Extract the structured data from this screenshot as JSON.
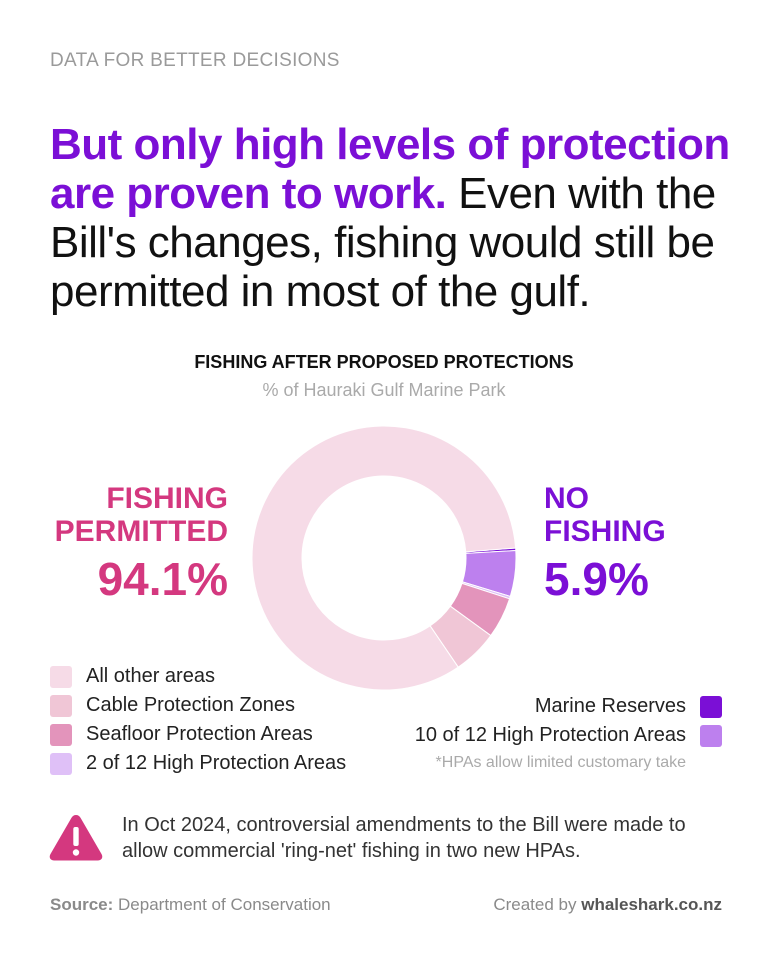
{
  "kicker": "DATA FOR BETTER DECISIONS",
  "headline": {
    "highlight": "But only high levels of protection are proven to work.",
    "rest": " Even with the Bill's changes, fishing would still be permitted in most of the gulf."
  },
  "colors": {
    "brand_purple": "#7b0fd6",
    "brand_pink": "#d4387f",
    "all_other": "#f6dbe7",
    "cable": "#f0c6d6",
    "seafloor": "#e394bb",
    "hpa2": "#dfc0f7",
    "marine_reserves": "#7b0fd6",
    "hpa10": "#bd80ee",
    "alert": "#d4387f"
  },
  "chart_data": {
    "type": "pie",
    "variant": "donut",
    "title": "FISHING AFTER PROPOSED PROTECTIONS",
    "subtitle": "% of Hauraki Gulf Marine Park",
    "categories": [
      "Marine Reserves",
      "10 of 12 High Protection Areas",
      "2 of 12 High Protection Areas",
      "Seafloor Protection Areas",
      "Cable Protection Zones",
      "All other areas"
    ],
    "values": [
      0.3,
      5.6,
      0.3,
      5.0,
      5.5,
      83.3
    ],
    "groups": {
      "fishing_permitted": {
        "label_line1": "FISHING",
        "label_line2": "PERMITTED",
        "value": "94.1%"
      },
      "no_fishing": {
        "label_line1": "NO",
        "label_line2": "FISHING",
        "value": "5.9%"
      }
    }
  },
  "legend": {
    "left": [
      {
        "label": "All other areas",
        "color": "#f6dbe7"
      },
      {
        "label": "Cable Protection Zones",
        "color": "#f0c6d6"
      },
      {
        "label": "Seafloor Protection Areas",
        "color": "#e394bb"
      },
      {
        "label": "2 of 12 High Protection Areas",
        "color": "#dfc0f7"
      }
    ],
    "right": [
      {
        "label": "Marine Reserves",
        "color": "#7b0fd6"
      },
      {
        "label": "10 of 12 High Protection Areas",
        "color": "#bd80ee"
      }
    ],
    "footnote": "*HPAs allow limited customary take"
  },
  "alert": {
    "icon": "warning-triangle-icon",
    "text": "In Oct 2024, controversial amendments to the Bill were made to allow commercial 'ring-net' fishing in two new HPAs."
  },
  "footer": {
    "source_label": "Source:",
    "source_value": " Department of Conservation",
    "credit_label": "Created by ",
    "credit_value": "whaleshark.co.nz"
  }
}
